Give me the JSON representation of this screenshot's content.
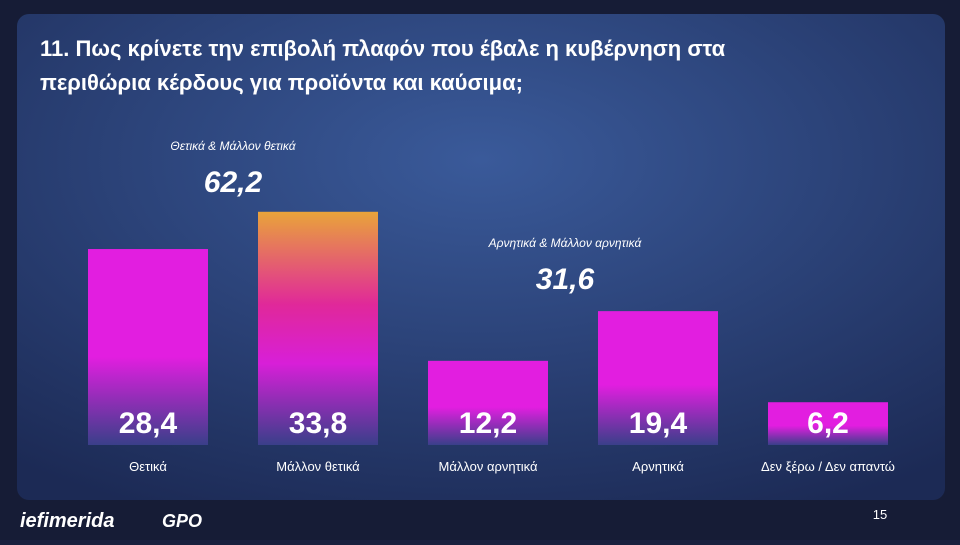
{
  "chart_data": {
    "type": "bar",
    "title": "11. Πως κρίνετε την επιβολή πλαφόν που έβαλε η κυβέρνηση στα περιθώρια κέρδους για προϊόντα και καύσιμα;",
    "categories": [
      "Θετικά",
      "Μάλλον θετικά",
      "Μάλλον αρνητικά",
      "Αρνητικά",
      "Δεν ξέρω / Δεν απαντώ"
    ],
    "values": [
      28.4,
      33.8,
      12.2,
      19.4,
      6.2
    ],
    "value_labels": [
      "28,4",
      "33,8",
      "12,2",
      "19,4",
      "6,2"
    ],
    "colors": [
      "#e21ee0",
      "#e9a43a",
      "#e21ee0",
      "#e21ee0",
      "#e21ee0"
    ],
    "annotations": [
      {
        "text": "Θετικά & Μάλλον θετικά",
        "value": 62.2,
        "value_label": "62,2"
      },
      {
        "text": "Αρνητικά & Μάλλον αρνητικά",
        "value": 31.6,
        "value_label": "31,6"
      }
    ]
  },
  "footer": {
    "brand": "iefimerida",
    "partner": "GPO",
    "page": "15"
  }
}
